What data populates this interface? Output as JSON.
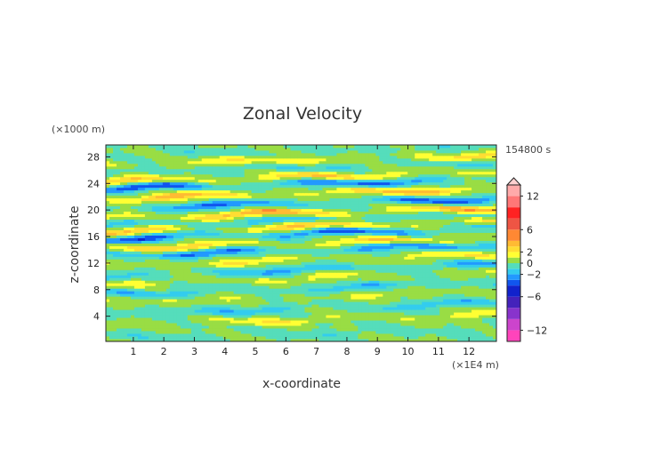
{
  "chart_data": {
    "type": "heatmap",
    "title": "Zonal Velocity",
    "xlabel": "x-coordinate",
    "ylabel": "z-coordinate",
    "x_unit": "(×1E4 m)",
    "y_unit": "(×1000 m)",
    "time_label": "154800 s",
    "x_ticks": [
      "1",
      "2",
      "3",
      "4",
      "5",
      "6",
      "7",
      "8",
      "9",
      "10",
      "11",
      "12"
    ],
    "y_ticks": [
      "4",
      "8",
      "12",
      "16",
      "20",
      "24",
      "28"
    ],
    "xlim": [
      0.1,
      12.9
    ],
    "ylim": [
      0.2,
      29.8
    ],
    "x_tick_values": [
      1,
      2,
      3,
      4,
      5,
      6,
      7,
      8,
      9,
      10,
      11,
      12
    ],
    "y_tick_values": [
      4,
      8,
      12,
      16,
      20,
      24,
      28
    ],
    "colorbar": {
      "tick_labels": [
        "12",
        "6",
        "2",
        "0",
        "−2",
        "−6",
        "−12"
      ],
      "tick_values": [
        12,
        6,
        2,
        0,
        -2,
        -6,
        -12
      ],
      "levels": [
        -14,
        -12,
        -10,
        -8,
        -6,
        -4,
        -3,
        -2,
        -1,
        0,
        1,
        2,
        3,
        4,
        6,
        8,
        10,
        12,
        14
      ],
      "colors": [
        "#ff44bb",
        "#cc44cc",
        "#8833cc",
        "#4422bb",
        "#1122cc",
        "#1155ee",
        "#2299ff",
        "#33ccee",
        "#55ddbb",
        "#99dd44",
        "#ffff33",
        "#ffdd33",
        "#ffbb33",
        "#ff8833",
        "#ee5544",
        "#ff2222",
        "#ff7777",
        "#ffaaaa"
      ]
    },
    "bands": [
      {
        "z": 1.5,
        "amp": -0.5
      },
      {
        "z": 3.5,
        "amp": 1.2
      },
      {
        "z": 5.2,
        "amp": -1.3
      },
      {
        "z": 7.0,
        "amp": 0.8
      },
      {
        "z": 8.2,
        "amp": -1.2
      },
      {
        "z": 9.8,
        "amp": 1.0
      },
      {
        "z": 11.0,
        "amp": -1.5
      },
      {
        "z": 12.5,
        "amp": 1.3
      },
      {
        "z": 14.0,
        "amp": -2.2
      },
      {
        "z": 15.0,
        "amp": 2.0
      },
      {
        "z": 16.5,
        "amp": -2.5
      },
      {
        "z": 17.5,
        "amp": 2.3
      },
      {
        "z": 18.5,
        "amp": -1.2
      },
      {
        "z": 19.6,
        "amp": 2.8
      },
      {
        "z": 21.0,
        "amp": -2.3
      },
      {
        "z": 22.5,
        "amp": 2.4
      },
      {
        "z": 24.0,
        "amp": -2.6
      },
      {
        "z": 25.0,
        "amp": 2.2
      },
      {
        "z": 26.5,
        "amp": -0.8
      },
      {
        "z": 27.6,
        "amp": 1.5
      },
      {
        "z": 29.0,
        "amp": -0.4
      }
    ]
  }
}
